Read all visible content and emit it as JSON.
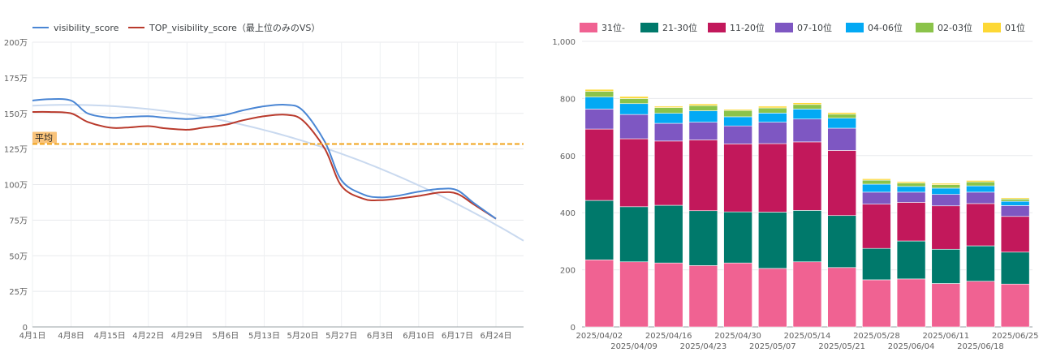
{
  "line_chart": {
    "legend": [
      "visibility_score",
      "TOP_visibility_score（最上位のみのVS）"
    ],
    "colors": {
      "visibility": "#4a86d4",
      "top": "#b93a2c",
      "trend": "#c9d9ef",
      "average": "#f1a31b"
    },
    "average_label": "平均",
    "y_tick_labels": [
      "0",
      "25万",
      "50万",
      "75万",
      "100万",
      "125万",
      "150万",
      "175万",
      "200万"
    ],
    "x_tick_labels": [
      "4月1日",
      "4月8日",
      "4月15日",
      "4月22日",
      "4月29日",
      "5月6日",
      "5月13日",
      "5月20日",
      "5月27日",
      "6月3日",
      "6月10日",
      "6月17日",
      "6月24日"
    ]
  },
  "bar_chart": {
    "legend": [
      "31位-",
      "21-30位",
      "11-20位",
      "07-10位",
      "04-06位",
      "02-03位",
      "01位"
    ],
    "colors": [
      "#f06292",
      "#00796b",
      "#c2185b",
      "#7e57c2",
      "#03a9f4",
      "#8bc34a",
      "#fdd835"
    ],
    "y_tick_labels": [
      "0",
      "200",
      "400",
      "600",
      "800",
      "1,000"
    ],
    "x_labels": [
      "2025/04/02",
      "2025/04/09",
      "2025/04/16",
      "2025/04/23",
      "2025/04/30",
      "2025/05/07",
      "2025/05/14",
      "2025/05/21",
      "2025/05/28",
      "2025/06/04",
      "2025/06/11",
      "2025/06/18",
      "2025/06/25"
    ]
  },
  "chart_data": [
    {
      "type": "line",
      "x": [
        "4月1日",
        "4月4日",
        "4月8日",
        "4月11日",
        "4月15日",
        "4月18日",
        "4月22日",
        "4月25日",
        "4月29日",
        "5月2日",
        "5月6日",
        "5月9日",
        "5月13日",
        "5月17日",
        "5月20日",
        "5月24日",
        "5月27日",
        "5月31日",
        "6月3日",
        "6月6日",
        "6月10日",
        "6月14日",
        "6月17日",
        "6月20日",
        "6月24日"
      ],
      "series": [
        {
          "name": "visibility_score",
          "values": [
            1590000,
            1600000,
            1590000,
            1500000,
            1470000,
            1475000,
            1480000,
            1470000,
            1460000,
            1470000,
            1490000,
            1520000,
            1550000,
            1560000,
            1520000,
            1300000,
            1030000,
            930000,
            910000,
            920000,
            950000,
            970000,
            960000,
            870000,
            760000
          ]
        },
        {
          "name": "TOP_visibility_score（最上位のみのVS）",
          "values": [
            1510000,
            1510000,
            1500000,
            1440000,
            1400000,
            1400000,
            1410000,
            1395000,
            1385000,
            1400000,
            1420000,
            1450000,
            1480000,
            1490000,
            1450000,
            1250000,
            990000,
            900000,
            890000,
            900000,
            920000,
            945000,
            935000,
            860000,
            760000
          ]
        }
      ],
      "reference_lines": [
        {
          "label": "平均",
          "value": 1285000
        }
      ],
      "ylim": [
        0,
        2000000
      ]
    },
    {
      "type": "bar",
      "stacked": true,
      "categories": [
        "2025/04/02",
        "2025/04/09",
        "2025/04/16",
        "2025/04/23",
        "2025/04/30",
        "2025/05/07",
        "2025/05/14",
        "2025/05/21",
        "2025/05/28",
        "2025/06/04",
        "2025/06/11",
        "2025/06/18",
        "2025/06/25"
      ],
      "series": [
        {
          "name": "31位-",
          "values": [
            235,
            228,
            224,
            215,
            224,
            205,
            228,
            208,
            165,
            168,
            152,
            160,
            150
          ]
        },
        {
          "name": "21-30位",
          "values": [
            208,
            193,
            202,
            192,
            179,
            197,
            180,
            182,
            110,
            133,
            120,
            124,
            112
          ]
        },
        {
          "name": "11-20位",
          "values": [
            250,
            238,
            225,
            248,
            238,
            240,
            240,
            228,
            155,
            135,
            152,
            148,
            125
          ]
        },
        {
          "name": "07-10位",
          "values": [
            70,
            85,
            62,
            62,
            63,
            75,
            80,
            78,
            42,
            36,
            40,
            40,
            38
          ]
        },
        {
          "name": "04-06位",
          "values": [
            42,
            38,
            35,
            40,
            32,
            32,
            35,
            35,
            28,
            20,
            22,
            22,
            15
          ]
        },
        {
          "name": "02-03位",
          "values": [
            20,
            18,
            20,
            18,
            22,
            18,
            16,
            14,
            14,
            12,
            12,
            14,
            8
          ]
        },
        {
          "name": "01位",
          "values": [
            7,
            7,
            5,
            6,
            4,
            6,
            6,
            6,
            5,
            5,
            5,
            5,
            4
          ]
        }
      ],
      "ylim": [
        0,
        1000
      ]
    }
  ]
}
